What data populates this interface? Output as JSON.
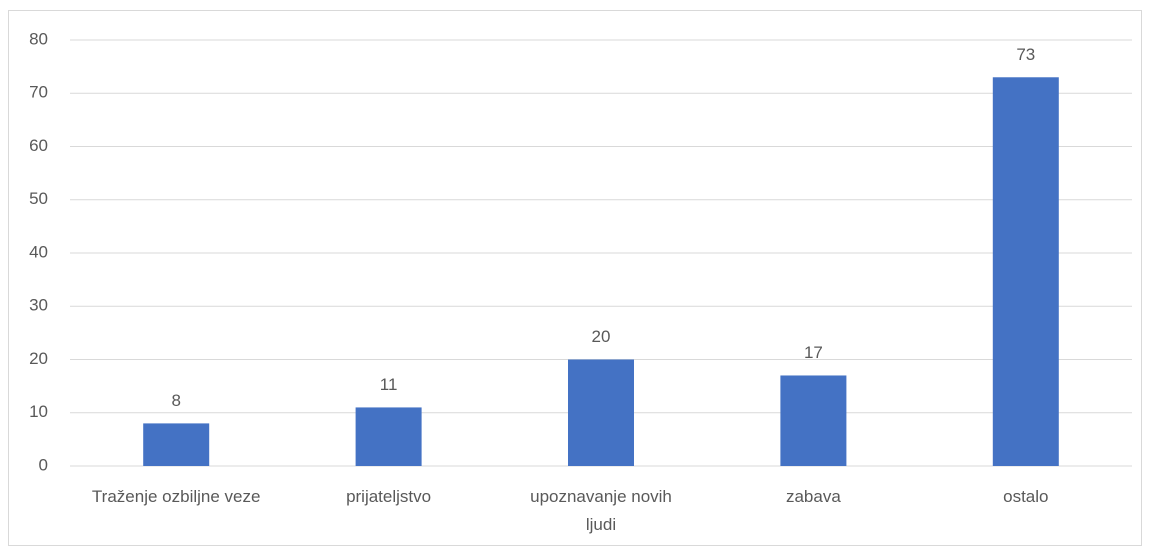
{
  "chart_data": {
    "type": "bar",
    "categories": [
      "Traženje ozbiljne veze",
      "prijateljstvo",
      "upoznavanje novih ljudi",
      "zabava",
      "ostalo"
    ],
    "values": [
      8,
      11,
      20,
      17,
      73
    ],
    "color": "#4472c4",
    "ylim": [
      0,
      80
    ],
    "yticks": [
      0,
      10,
      20,
      30,
      40,
      50,
      60,
      70,
      80
    ],
    "grid": true
  }
}
